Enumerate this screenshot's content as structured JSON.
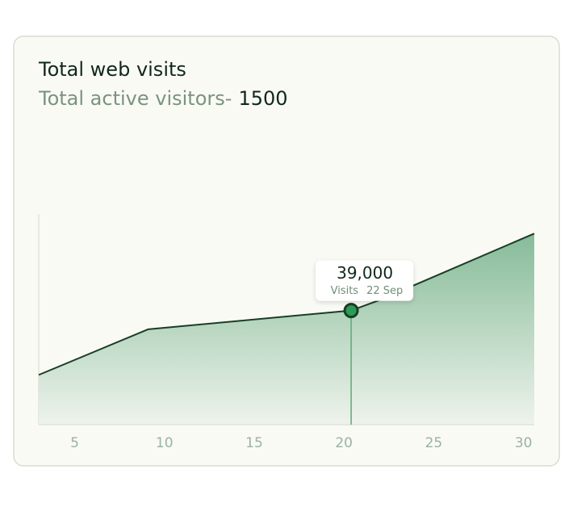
{
  "chart_data": {
    "type": "area",
    "title": "Total web visits",
    "subtitle": "Total active visitors-",
    "total": 1500,
    "x": [
      3,
      9.1,
      20.4,
      22,
      30.6
    ],
    "values": [
      17000,
      32600,
      39000,
      42600,
      65300
    ],
    "color": "#86bb98",
    "xlim": [
      3,
      30.6
    ],
    "xticks": [
      5,
      10,
      15,
      20,
      25,
      30
    ],
    "ylim": [
      0,
      72000
    ],
    "tooltip": {
      "x": 20.4,
      "value": 39000,
      "value_label": "39,000",
      "label": "Visits",
      "date": "22 Sep"
    }
  }
}
